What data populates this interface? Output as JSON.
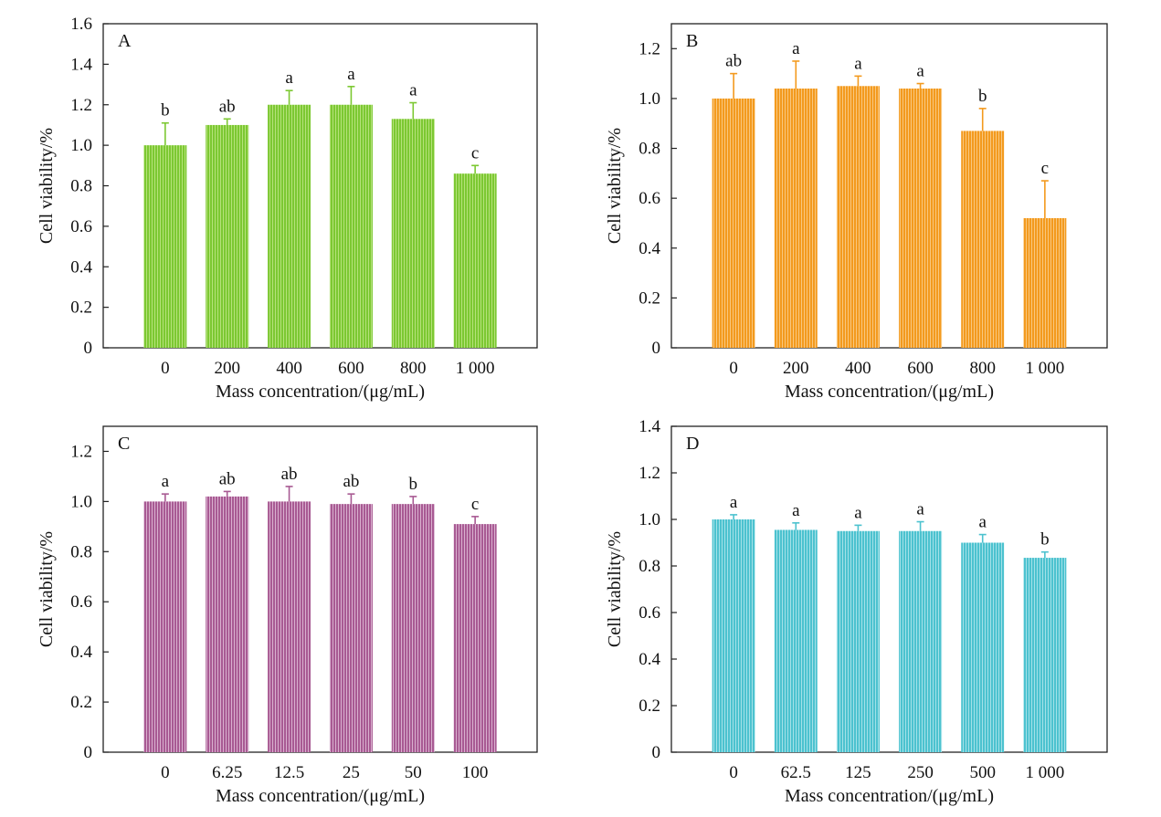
{
  "chart_data": [
    {
      "type": "bar",
      "panel_label": "A",
      "categories": [
        "0",
        "200",
        "400",
        "600",
        "800",
        "1 000"
      ],
      "values": [
        1.0,
        1.1,
        1.2,
        1.2,
        1.13,
        0.86
      ],
      "errors": [
        0.11,
        0.03,
        0.07,
        0.09,
        0.08,
        0.04
      ],
      "significance": [
        "b",
        "ab",
        "a",
        "a",
        "a",
        "c"
      ],
      "xlabel": "Mass concentration/(μg/mL)",
      "ylabel": "Cell viability/%",
      "ylim": [
        0,
        1.6
      ],
      "yticks": [
        "0",
        "0.2",
        "0.4",
        "0.6",
        "0.8",
        "1.0",
        "1.2",
        "1.4",
        "1.6"
      ],
      "color": "#7cc832",
      "stripe_color": "#b5e27a"
    },
    {
      "type": "bar",
      "panel_label": "B",
      "categories": [
        "0",
        "200",
        "400",
        "600",
        "800",
        "1 000"
      ],
      "values": [
        1.0,
        1.04,
        1.05,
        1.04,
        0.87,
        0.52
      ],
      "errors": [
        0.1,
        0.11,
        0.04,
        0.02,
        0.09,
        0.15
      ],
      "significance": [
        "ab",
        "a",
        "a",
        "a",
        "b",
        "c"
      ],
      "xlabel": "Mass concentration/(μg/mL)",
      "ylabel": "Cell viability/%",
      "ylim": [
        0,
        1.3
      ],
      "yticks": [
        "0",
        "0.2",
        "0.4",
        "0.6",
        "0.8",
        "1.0",
        "1.2"
      ],
      "color": "#f39a1e",
      "stripe_color": "#f9c77e"
    },
    {
      "type": "bar",
      "panel_label": "C",
      "categories": [
        "0",
        "6.25",
        "12.5",
        "25",
        "50",
        "100"
      ],
      "values": [
        1.0,
        1.02,
        1.0,
        0.99,
        0.99,
        0.91
      ],
      "errors": [
        0.03,
        0.02,
        0.06,
        0.04,
        0.03,
        0.03
      ],
      "significance": [
        "a",
        "ab",
        "ab",
        "ab",
        "b",
        "c"
      ],
      "xlabel": "Mass concentration/(μg/mL)",
      "ylabel": "Cell viability/%",
      "ylim": [
        0,
        1.3
      ],
      "yticks": [
        "0",
        "0.2",
        "0.4",
        "0.6",
        "0.8",
        "1.0",
        "1.2"
      ],
      "color": "#a85a93",
      "stripe_color": "#d9b0cf"
    },
    {
      "type": "bar",
      "panel_label": "D",
      "categories": [
        "0",
        "62.5",
        "125",
        "250",
        "500",
        "1 000"
      ],
      "values": [
        1.0,
        0.955,
        0.95,
        0.95,
        0.9,
        0.835
      ],
      "errors": [
        0.02,
        0.03,
        0.025,
        0.04,
        0.035,
        0.025
      ],
      "significance": [
        "a",
        "a",
        "a",
        "a",
        "a",
        "b"
      ],
      "xlabel": "Mass concentration/(μg/mL)",
      "ylabel": "Cell viability/%",
      "ylim": [
        0,
        1.4
      ],
      "yticks": [
        "0",
        "0.2",
        "0.4",
        "0.6",
        "0.8",
        "1.0",
        "1.2",
        "1.4"
      ],
      "color": "#4cc2cf",
      "stripe_color": "#a3e1e8"
    }
  ]
}
